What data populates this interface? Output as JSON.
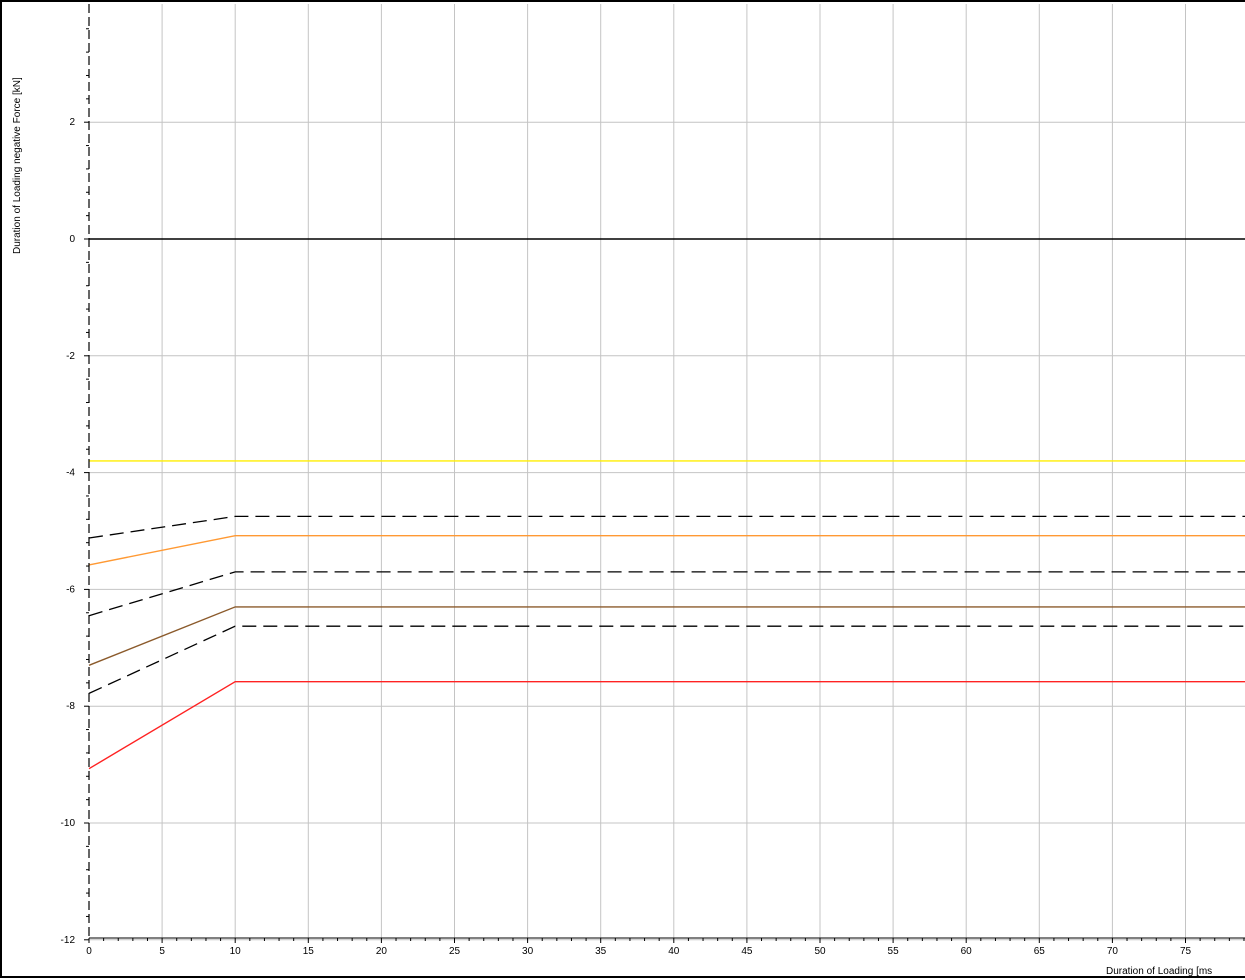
{
  "chart_data": {
    "type": "line",
    "title": "",
    "xlabel": "Duration of Loading  [ms",
    "ylabel": "Duration of Loading negative Force  [kN]",
    "xlim": [
      0,
      79.5
    ],
    "ylim": [
      -12,
      4
    ],
    "x_ticks": [
      0,
      5,
      10,
      15,
      20,
      25,
      30,
      35,
      40,
      45,
      50,
      55,
      60,
      65,
      70,
      75
    ],
    "y_ticks": [
      -12,
      -10,
      -8,
      -6,
      -4,
      -2,
      0,
      2
    ],
    "grid": true,
    "legend": "none",
    "series": [
      {
        "color": "#000000",
        "style": "solid",
        "points": [
          [
            0,
            0
          ],
          [
            79.5,
            0
          ]
        ]
      },
      {
        "color": "#ffee00",
        "style": "solid",
        "points": [
          [
            0,
            -3.8
          ],
          [
            79.5,
            -3.8
          ]
        ]
      },
      {
        "color": "#000000",
        "style": "dashed",
        "points": [
          [
            0,
            -5.12
          ],
          [
            10,
            -4.75
          ],
          [
            79.5,
            -4.75
          ]
        ]
      },
      {
        "color": "#ff9933",
        "style": "solid",
        "points": [
          [
            0,
            -5.58
          ],
          [
            10,
            -5.08
          ],
          [
            79.5,
            -5.08
          ]
        ]
      },
      {
        "color": "#000000",
        "style": "dashed",
        "points": [
          [
            0,
            -6.45
          ],
          [
            10,
            -5.7
          ],
          [
            79.5,
            -5.7
          ]
        ]
      },
      {
        "color": "#8b5a2b",
        "style": "solid",
        "points": [
          [
            0,
            -7.3
          ],
          [
            10,
            -6.3
          ],
          [
            79.5,
            -6.3
          ]
        ]
      },
      {
        "color": "#000000",
        "style": "dashed",
        "points": [
          [
            0,
            -7.78
          ],
          [
            10,
            -6.63
          ],
          [
            79.5,
            -6.63
          ]
        ]
      },
      {
        "color": "#ff2222",
        "style": "solid",
        "points": [
          [
            0,
            -9.07
          ],
          [
            10,
            -7.58
          ],
          [
            79.5,
            -7.58
          ]
        ]
      }
    ]
  }
}
